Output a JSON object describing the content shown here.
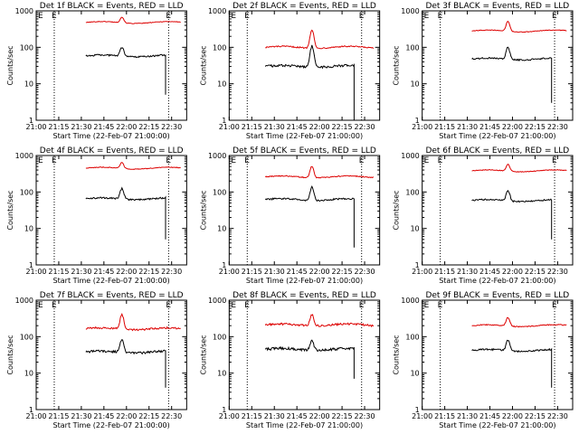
{
  "chart_data": {
    "type": "line",
    "layout": {
      "rows": 3,
      "cols": 3
    },
    "colors": {
      "events": "#000000",
      "lld": "#dd0000",
      "axes": "#000000"
    },
    "event_marker": "E",
    "xlabel": "Start Time (22-Feb-07 21:00:00)",
    "ylabel": "Counts/sec",
    "x_ticks": [
      "21:00",
      "21:15",
      "21:30",
      "21:45",
      "22:00",
      "22:15",
      "22:30"
    ],
    "y_ticks": [
      {
        "value": 1,
        "label": "1"
      },
      {
        "value": 10,
        "label": "10"
      },
      {
        "value": 100,
        "label": "100"
      },
      {
        "value": 1000,
        "label": "1000"
      }
    ],
    "xlim_minutes": [
      0,
      100
    ],
    "ylim": [
      1,
      1000
    ],
    "yscale": "log",
    "x_units": "minutes after 21:00 on 22-Feb-07",
    "dotted_lines_minutes": [
      12,
      88
    ],
    "panels": [
      {
        "title": "Det 1f BLACK = Events, RED = LLD",
        "lld": {
          "start": 33,
          "end": 96,
          "base": 480,
          "peak": 680,
          "peak_at": 57,
          "noise": 0.02
        },
        "events": {
          "start": 33,
          "end": 86,
          "base": 58,
          "peak": 100,
          "peak_at": 57,
          "noise": 0.05,
          "drop_to": 5
        }
      },
      {
        "title": "Det 2f BLACK = Events, RED = LLD",
        "lld": {
          "start": 24,
          "end": 96,
          "base": 100,
          "peak": 310,
          "peak_at": 55,
          "noise": 0.04
        },
        "events": {
          "start": 24,
          "end": 83,
          "base": 30,
          "peak": 110,
          "peak_at": 55,
          "noise": 0.07,
          "drop_to": 1
        }
      },
      {
        "title": "Det 3f BLACK = Events, RED = LLD",
        "lld": {
          "start": 33,
          "end": 96,
          "base": 280,
          "peak": 520,
          "peak_at": 57,
          "noise": 0.02
        },
        "events": {
          "start": 33,
          "end": 86,
          "base": 48,
          "peak": 100,
          "peak_at": 57,
          "noise": 0.05,
          "drop_to": 3
        }
      },
      {
        "title": "Det 4f BLACK = Events, RED = LLD",
        "lld": {
          "start": 33,
          "end": 96,
          "base": 450,
          "peak": 650,
          "peak_at": 57,
          "noise": 0.02
        },
        "events": {
          "start": 33,
          "end": 86,
          "base": 65,
          "peak": 125,
          "peak_at": 57,
          "noise": 0.05,
          "drop_to": 5
        }
      },
      {
        "title": "Det 5f BLACK = Events, RED = LLD",
        "lld": {
          "start": 24,
          "end": 96,
          "base": 260,
          "peak": 520,
          "peak_at": 55,
          "noise": 0.03
        },
        "events": {
          "start": 24,
          "end": 83,
          "base": 62,
          "peak": 140,
          "peak_at": 55,
          "noise": 0.05,
          "drop_to": 3
        }
      },
      {
        "title": "Det 6f BLACK = Events, RED = LLD",
        "lld": {
          "start": 33,
          "end": 96,
          "base": 380,
          "peak": 580,
          "peak_at": 57,
          "noise": 0.02
        },
        "events": {
          "start": 33,
          "end": 86,
          "base": 58,
          "peak": 110,
          "peak_at": 57,
          "noise": 0.05,
          "drop_to": 5
        }
      },
      {
        "title": "Det 7f BLACK = Events, RED = LLD",
        "lld": {
          "start": 33,
          "end": 96,
          "base": 165,
          "peak": 400,
          "peak_at": 57,
          "noise": 0.06
        },
        "events": {
          "start": 33,
          "end": 86,
          "base": 38,
          "peak": 80,
          "peak_at": 57,
          "noise": 0.07,
          "drop_to": 4
        }
      },
      {
        "title": "Det 8f BLACK = Events, RED = LLD",
        "lld": {
          "start": 24,
          "end": 96,
          "base": 210,
          "peak": 420,
          "peak_at": 55,
          "noise": 0.06
        },
        "events": {
          "start": 24,
          "end": 83,
          "base": 45,
          "peak": 78,
          "peak_at": 55,
          "noise": 0.08,
          "drop_to": 7
        }
      },
      {
        "title": "Det 9f BLACK = Events, RED = LLD",
        "lld": {
          "start": 33,
          "end": 96,
          "base": 200,
          "peak": 340,
          "peak_at": 57,
          "noise": 0.03
        },
        "events": {
          "start": 33,
          "end": 86,
          "base": 42,
          "peak": 80,
          "peak_at": 57,
          "noise": 0.05,
          "drop_to": 4
        }
      }
    ]
  }
}
